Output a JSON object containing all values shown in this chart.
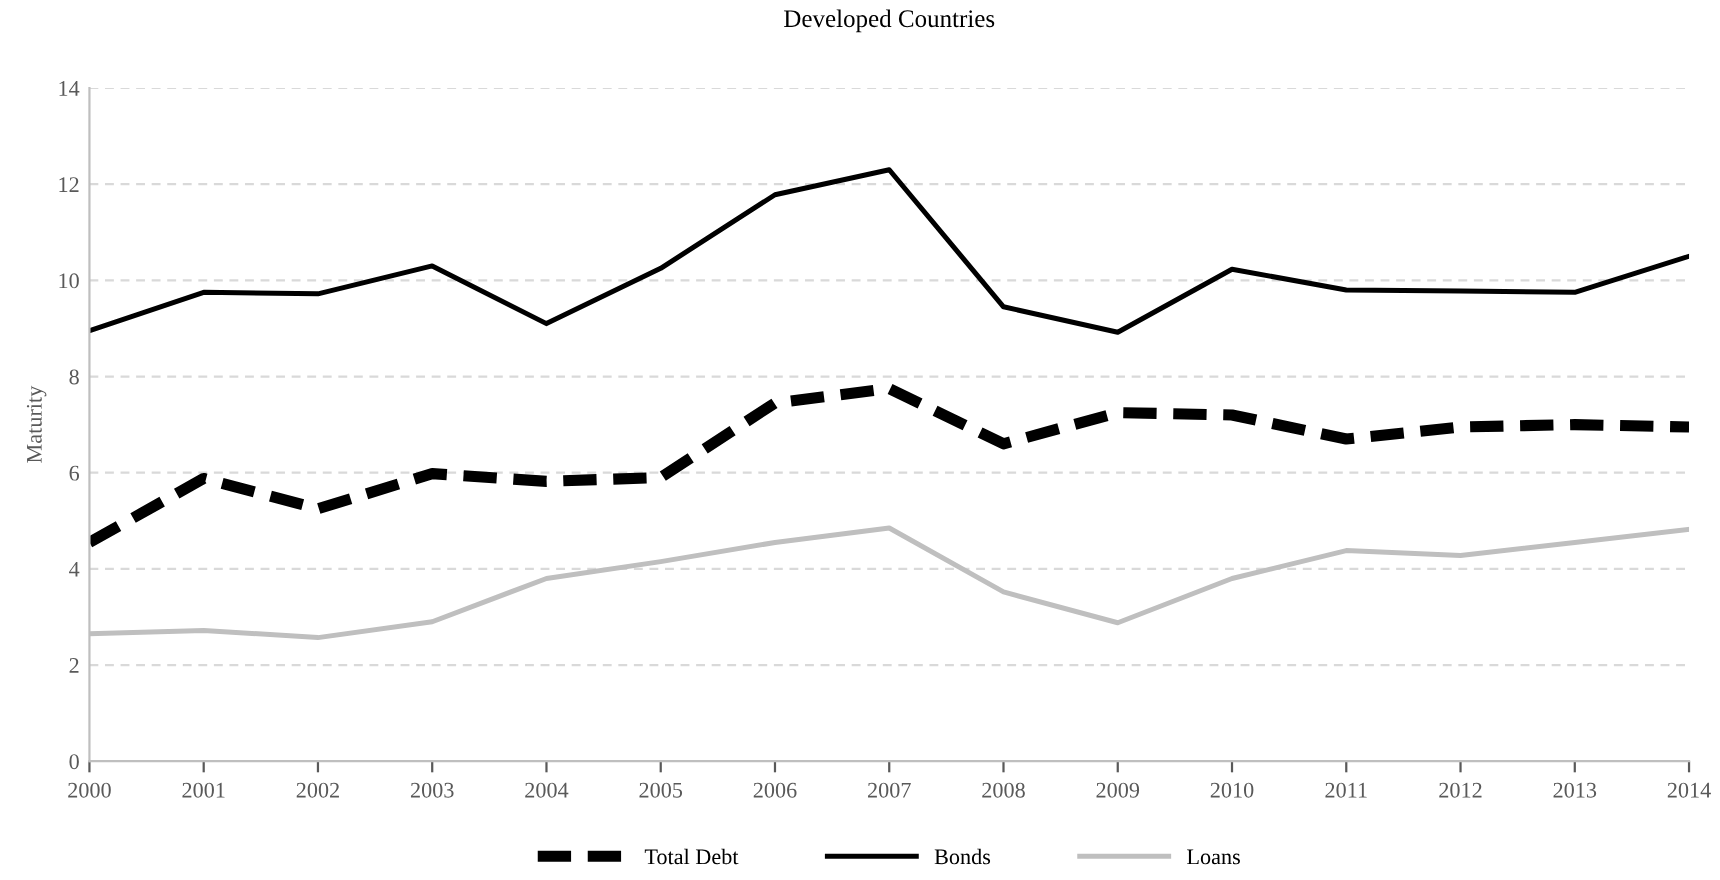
{
  "chart_data": {
    "type": "line",
    "title": "Developed Countries",
    "ylabel": "Maturity",
    "x": [
      2000,
      2001,
      2002,
      2003,
      2004,
      2005,
      2006,
      2007,
      2008,
      2009,
      2010,
      2011,
      2012,
      2013,
      2014
    ],
    "series": [
      {
        "name": "Total Debt",
        "color": "#000000",
        "line_style": "dashed",
        "values": [
          4.55,
          5.88,
          5.25,
          5.98,
          5.82,
          5.9,
          7.45,
          7.75,
          6.6,
          7.25,
          7.2,
          6.7,
          6.95,
          7.0,
          6.95
        ]
      },
      {
        "name": "Bonds",
        "color": "#000000",
        "line_style": "solid",
        "values": [
          8.95,
          9.75,
          9.72,
          10.3,
          9.1,
          10.25,
          11.78,
          12.3,
          9.45,
          8.92,
          10.23,
          9.8,
          9.78,
          9.75,
          10.5
        ]
      },
      {
        "name": "Loans",
        "color": "#bfbfbf",
        "line_style": "solid",
        "values": [
          2.65,
          2.72,
          2.57,
          2.9,
          3.8,
          4.15,
          4.55,
          4.85,
          3.52,
          2.88,
          3.8,
          4.38,
          4.28,
          4.55,
          4.82
        ]
      }
    ],
    "xlim": [
      2000,
      2014
    ],
    "xticks": [
      2000,
      2001,
      2002,
      2003,
      2004,
      2005,
      2006,
      2007,
      2008,
      2009,
      2010,
      2011,
      2012,
      2013,
      2014
    ],
    "ylim": [
      0,
      14
    ],
    "yticks": [
      0,
      2,
      4,
      6,
      8,
      10,
      12,
      14
    ],
    "grid": "y",
    "legend": "bottom",
    "marker": "none"
  }
}
